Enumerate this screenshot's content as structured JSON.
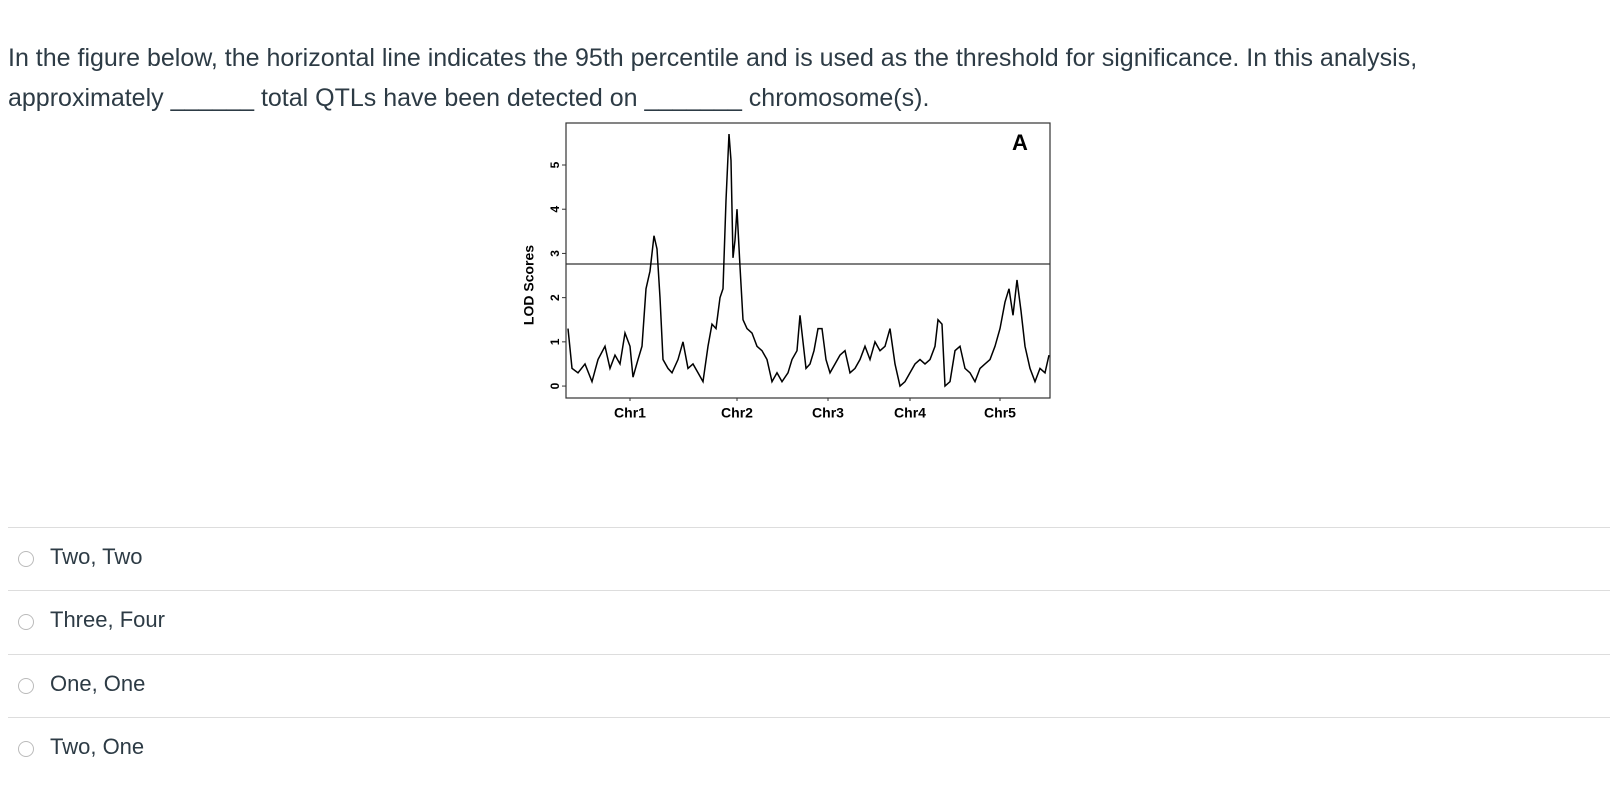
{
  "question": [
    "In the figure below, the horizontal line indicates the 95th percentile and is used as the threshold for significance. In this analysis,",
    "approximately ______ total QTLs have been detected on _______ chromosome(s)."
  ],
  "chart_data": {
    "type": "line",
    "panel_label": "A",
    "ylabel": "LOD Scores",
    "xlim": [
      0,
      484
    ],
    "ylim": [
      -0.27,
      5.95
    ],
    "yticks": [
      0,
      1,
      2,
      3,
      4,
      5
    ],
    "xticks": [
      {
        "value": 64,
        "label": "Chr1"
      },
      {
        "value": 171,
        "label": "Chr2"
      },
      {
        "value": 262,
        "label": "Chr3"
      },
      {
        "value": 344,
        "label": "Chr4"
      },
      {
        "value": 434,
        "label": "Chr5"
      }
    ],
    "threshold": 2.76,
    "color": "#000000",
    "x": [
      2,
      6,
      12,
      19,
      26,
      32,
      39,
      44,
      49,
      54,
      59,
      64,
      67,
      72,
      76,
      80,
      84,
      88,
      91,
      94,
      97,
      102,
      106,
      112,
      117,
      122,
      127,
      132,
      137,
      142,
      146,
      150,
      154,
      157,
      160,
      163,
      165,
      167,
      169,
      171,
      174,
      177,
      181,
      186,
      191,
      196,
      201,
      206,
      211,
      216,
      222,
      226,
      231,
      234,
      237,
      240,
      244,
      248,
      252,
      256,
      260,
      264,
      269,
      274,
      279,
      284,
      289,
      294,
      299,
      304,
      309,
      314,
      319,
      324,
      329,
      334,
      339,
      344,
      349,
      354,
      359,
      364,
      369,
      372,
      376,
      379,
      384,
      389,
      394,
      399,
      404,
      409,
      414,
      419,
      424,
      429,
      434,
      439,
      443,
      447,
      451,
      455,
      459,
      464,
      469,
      474,
      479,
      483
    ],
    "values": [
      1.3,
      0.4,
      0.3,
      0.5,
      0.1,
      0.6,
      0.9,
      0.4,
      0.7,
      0.5,
      1.2,
      0.9,
      0.2,
      0.6,
      0.9,
      2.2,
      2.6,
      3.4,
      3.1,
      2.0,
      0.6,
      0.4,
      0.3,
      0.6,
      1.0,
      0.4,
      0.5,
      0.3,
      0.1,
      0.9,
      1.4,
      1.3,
      2.0,
      2.2,
      4.2,
      5.7,
      5.1,
      2.9,
      3.3,
      4.0,
      2.7,
      1.5,
      1.3,
      1.2,
      0.9,
      0.8,
      0.6,
      0.1,
      0.3,
      0.1,
      0.3,
      0.6,
      0.8,
      1.6,
      1.0,
      0.4,
      0.5,
      0.8,
      1.3,
      1.3,
      0.6,
      0.3,
      0.5,
      0.7,
      0.8,
      0.3,
      0.4,
      0.6,
      0.9,
      0.6,
      1.0,
      0.8,
      0.9,
      1.3,
      0.5,
      0.0,
      0.1,
      0.3,
      0.5,
      0.6,
      0.5,
      0.6,
      0.9,
      1.5,
      1.4,
      0.0,
      0.1,
      0.8,
      0.9,
      0.4,
      0.3,
      0.1,
      0.4,
      0.5,
      0.6,
      0.9,
      1.3,
      1.9,
      2.2,
      1.6,
      2.4,
      1.7,
      0.9,
      0.4,
      0.1,
      0.4,
      0.3,
      0.7
    ]
  },
  "options": [
    "Two, Two",
    "Three, Four",
    "One, One",
    "Two, One"
  ]
}
